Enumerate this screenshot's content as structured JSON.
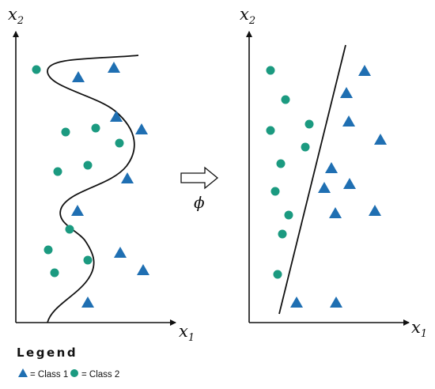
{
  "left_panel": {
    "x_axis_label": "x",
    "x_axis_subscript": "1",
    "y_axis_label": "x",
    "y_axis_subscript": "2"
  },
  "right_panel": {
    "x_axis_label": "x",
    "x_axis_subscript": "1",
    "y_axis_label": "x",
    "y_axis_subscript": "2"
  },
  "mapping": {
    "symbol": "ϕ",
    "arrow_icon": "hollow-right-arrow"
  },
  "legend": {
    "title": "Legend",
    "items": [
      {
        "label": "= Class 1",
        "marker": "triangle",
        "color": "#1f6fb2"
      },
      {
        "label": "= Class 2",
        "marker": "circle",
        "color": "#1b9a80"
      }
    ]
  },
  "colors": {
    "class_1": "#1f6fb2",
    "class_2": "#1b9a80",
    "axis": "#111111"
  }
}
